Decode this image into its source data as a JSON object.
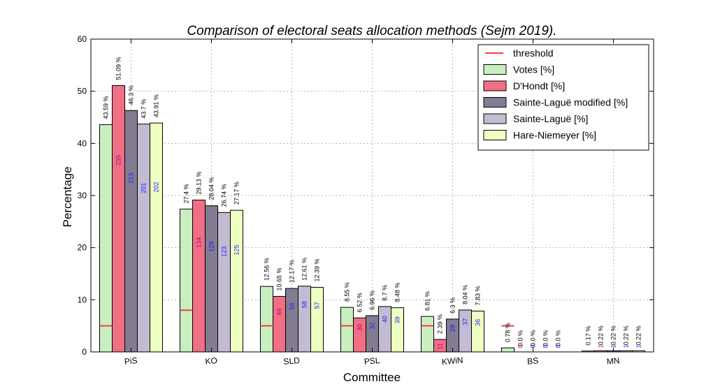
{
  "chart_data": {
    "type": "bar",
    "title": "Comparison of electoral seats allocation methods (Sejm 2019).",
    "xlabel": "Committee",
    "ylabel": "Percentage",
    "ylim": [
      0,
      60
    ],
    "yticks": [
      "0",
      "10",
      "20",
      "30",
      "40",
      "50",
      "60"
    ],
    "grid": true,
    "legend_position": "top-right",
    "categories": [
      "PiS",
      "KO",
      "SLD",
      "PSL",
      "KWiN",
      "BS",
      "MN"
    ],
    "threshold": {
      "name": "threshold",
      "color": "#ff3b3b",
      "values": [
        5,
        8,
        5,
        5,
        5,
        5,
        null
      ]
    },
    "series": [
      {
        "name": "Votes [%]",
        "color": "#c9efc0",
        "values": [
          43.59,
          27.4,
          12.56,
          8.55,
          6.81,
          0.78,
          0.17
        ],
        "labels": [
          "43.59 %",
          "27.4 %",
          "12.56 %",
          "8.55 %",
          "6.81 %",
          "0.78 %",
          "0.17 %"
        ],
        "seats": []
      },
      {
        "name": "D'Hondt [%]",
        "color": "#ef6f84",
        "values": [
          51.09,
          29.13,
          10.65,
          6.52,
          2.39,
          0.0,
          0.22
        ],
        "labels": [
          "51.09 %",
          "29.13 %",
          "10.65 %",
          "6.52 %",
          "2.39 %",
          "0.0 %",
          "0.22 %"
        ],
        "seats": [
          "235",
          "134",
          "49",
          "30",
          "11",
          "0",
          "1"
        ],
        "seat_color": "#c0007a"
      },
      {
        "name": "Sainte-Laguë modified [%]",
        "color": "#827b91",
        "values": [
          46.3,
          28.04,
          12.17,
          6.96,
          6.3,
          0.0,
          0.22
        ],
        "labels": [
          "46.3 %",
          "28.04 %",
          "12.17 %",
          "6.96 %",
          "6.3 %",
          "0.0 %",
          "0.22 %"
        ],
        "seats": [
          "213",
          "129",
          "56",
          "32",
          "29",
          "0",
          "1"
        ],
        "seat_color": "#1a1aff"
      },
      {
        "name": "Sainte-Laguë [%]",
        "color": "#c1bcd1",
        "values": [
          43.7,
          26.74,
          12.61,
          8.7,
          8.04,
          0.0,
          0.22
        ],
        "labels": [
          "43.7 %",
          "26.74 %",
          "12.61 %",
          "8.7 %",
          "8.04 %",
          "0.0 %",
          "0.22 %"
        ],
        "seats": [
          "201",
          "123",
          "58",
          "40",
          "37",
          "0",
          "1"
        ],
        "seat_color": "#1a1aff"
      },
      {
        "name": "Hare-Niemeyer [%]",
        "color": "#efffc2",
        "values": [
          43.91,
          27.17,
          12.39,
          8.48,
          7.83,
          0.0,
          0.22
        ],
        "labels": [
          "43.91 %",
          "27.17 %",
          "12.39 %",
          "8.48 %",
          "7.83 %",
          "0.0 %",
          "0.22 %"
        ],
        "seats": [
          "202",
          "125",
          "57",
          "39",
          "36",
          "0",
          "1"
        ],
        "seat_color": "#1a1aff"
      }
    ]
  }
}
